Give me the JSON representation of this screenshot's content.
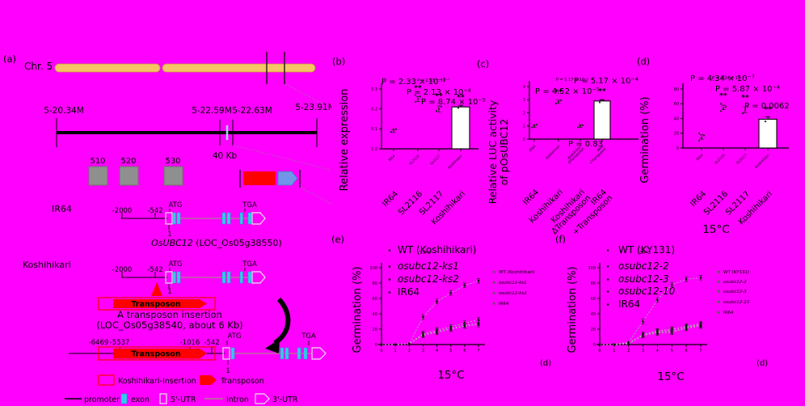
{
  "figure": {
    "bg_color": "#ff00ff",
    "panel_labels": {
      "a": "(a)",
      "b": "(b)",
      "c": "(c)",
      "d": "(d)",
      "e": "(e)",
      "f": "(f)"
    },
    "stray_labels": [
      "(d)",
      "(d)"
    ]
  },
  "panel_a": {
    "chromosome_label": "Chr. 5",
    "region_positions": [
      "5-20.34M",
      "5-22.59M",
      "5-22.63M",
      "5-23.91M"
    ],
    "scale_label": "40 Kb",
    "locus_boxes": [
      "510",
      "520",
      "530"
    ],
    "row_ir64": "IR64",
    "row_koshihikari": "Koshihikari",
    "gene_name_italic": "OsUBC12",
    "gene_name_rest": " (LOC_Os05g38550)",
    "upstream_marks_ir64": [
      "-2000",
      "-542"
    ],
    "upstream_marks_insertion": [
      "-6469",
      "-5537",
      "-1016",
      "-542"
    ],
    "start_codon": "ATG",
    "stop_codon": "TGA",
    "tss_label": "1",
    "transposon_box_label": "Transposon",
    "insertion_caption_line1": "A transposon insertion",
    "insertion_caption_line2": "(LOC_Os05g38540, about 6 Kb)",
    "legend": {
      "koshihikari_insertion": "Koshihikari-Insertion",
      "transposon": "Transposon",
      "promoter": "promoter",
      "exon": "exon",
      "utr5": "5'-UTR",
      "intron": "intron",
      "utr3": "3'-UTR"
    },
    "colors": {
      "chromosome": "#f6c464",
      "exon": "#35c8f0",
      "transposon": "#ff0000",
      "gene_arrow": "#7195e8",
      "locus_box": "#8f8f8f",
      "utr_outline": "#e6e6f0",
      "intron_line": "#97a06f"
    }
  },
  "chart_data": [
    {
      "id": "b",
      "type": "bar",
      "ylabel": "Relative expression",
      "categories": [
        [
          "IR64"
        ],
        [
          "SL2116"
        ],
        [
          "SL2117"
        ],
        [
          "Koshihikari"
        ]
      ],
      "values": [
        0.09,
        0.25,
        0.2,
        0.21
      ],
      "bar_outlined": [
        false,
        false,
        false,
        true
      ],
      "scatter": [
        [
          0.085,
          0.092,
          0.098
        ],
        [
          0.235,
          0.25,
          0.262,
          0.27
        ],
        [
          0.19,
          0.2,
          0.212
        ],
        [
          0.205,
          0.215
        ]
      ],
      "errors": [
        0.008,
        0.012,
        0.015,
        0.008
      ],
      "significance": [
        "",
        "**",
        "**",
        "**"
      ],
      "p_values": [
        "P = 2.33 × 10⁻⁷",
        "P = 2.13 × 10⁻⁴",
        "P = 8.74 × 10⁻⁵"
      ],
      "ylim": [
        0,
        0.3
      ],
      "yticks": [
        "0.0",
        "0.1",
        "0.2",
        "0.3"
      ]
    },
    {
      "id": "c",
      "type": "bar",
      "ylabel_line1": "Relative LUC activity",
      "ylabel_line2": "of pOsUBC12",
      "categories": [
        [
          "IR64"
        ],
        [
          "Koshihikari"
        ],
        [
          "Koshihikari",
          "ΔTransposon"
        ],
        [
          "IR64",
          "+Transposon"
        ]
      ],
      "values": [
        1.0,
        2.85,
        1.0,
        2.9
      ],
      "bar_outlined": [
        false,
        false,
        false,
        true
      ],
      "scatter": [
        [
          0.9,
          1.0,
          1.1
        ],
        [
          2.7,
          2.85,
          2.95
        ],
        [
          0.9,
          1.0,
          1.05
        ],
        [
          2.8,
          2.95
        ]
      ],
      "errors": [
        0.1,
        0.12,
        0.1,
        0.1
      ],
      "significance": [
        "",
        "**",
        "",
        "**"
      ],
      "p_values": [
        "P = 4.52 × 10⁻⁵",
        "P = 5.17 × 10⁻⁴",
        "P = 0.83"
      ],
      "ylim": [
        0,
        4
      ],
      "yticks": [
        "0",
        "1",
        "2",
        "3",
        "4"
      ]
    },
    {
      "id": "d",
      "type": "bar",
      "ylabel": "Germination (%)",
      "xlabel": "15°C",
      "categories": [
        [
          "IR64"
        ],
        [
          "SL2116"
        ],
        [
          "SL2117"
        ],
        [
          "Koshihikari"
        ]
      ],
      "values": [
        15,
        55,
        52,
        39
      ],
      "bar_outlined": [
        false,
        false,
        false,
        true
      ],
      "scatter": [
        [
          10,
          14,
          17,
          20
        ],
        [
          50,
          54,
          56,
          60
        ],
        [
          47,
          52,
          56
        ],
        [
          36,
          40
        ]
      ],
      "errors": [
        3,
        3,
        4,
        3
      ],
      "significance": [
        "",
        "**",
        "**",
        "**"
      ],
      "p_values": [
        "P = 4.34 × 10⁻⁷",
        "P = 5.87 × 10⁻⁴",
        "P = 0.0062"
      ],
      "ylim": [
        0,
        80
      ],
      "yticks": [
        "0",
        "20",
        "40",
        "60",
        "80"
      ]
    },
    {
      "id": "e",
      "type": "line",
      "ylabel": "Germination (%)",
      "xlabel": "15°C",
      "x": [
        0,
        1,
        2,
        3,
        4,
        5,
        6,
        7
      ],
      "xticks": [
        "0",
        "1",
        "2",
        "3",
        "4",
        "5",
        "6",
        "7"
      ],
      "series": [
        {
          "name": "WT (Koshihikari)",
          "values": [
            0,
            0,
            1,
            36,
            56,
            67,
            77,
            83
          ]
        },
        {
          "name": "osubc12-ks1",
          "values": [
            0,
            0,
            1,
            14,
            19,
            23,
            28,
            32
          ]
        },
        {
          "name": "osubc12-ks2",
          "values": [
            0,
            0,
            1,
            13,
            17,
            21,
            25,
            28
          ]
        },
        {
          "name": "IR64",
          "values": [
            0,
            0,
            1,
            12,
            16,
            20,
            24,
            26
          ]
        }
      ],
      "ylim": [
        0,
        100
      ],
      "yticks": [
        "0",
        "20",
        "40",
        "60",
        "80",
        "100"
      ],
      "legend_position": "right"
    },
    {
      "id": "f",
      "type": "line",
      "ylabel": "Germination (%)",
      "xlabel": "15°C",
      "x": [
        0,
        1,
        2,
        3,
        4,
        5,
        6,
        7
      ],
      "xticks": [
        "0",
        "1",
        "2",
        "3",
        "4",
        "5",
        "6",
        "7"
      ],
      "series": [
        {
          "name": "WT (KY131)",
          "values": [
            0,
            0,
            3,
            30,
            58,
            78,
            85,
            87
          ]
        },
        {
          "name": "osubc12-2",
          "values": [
            0,
            0,
            2,
            13,
            18,
            20,
            23,
            26
          ]
        },
        {
          "name": "osubc12-3",
          "values": [
            0,
            0,
            1,
            12,
            16,
            17,
            22,
            25
          ]
        },
        {
          "name": "osubc12-10",
          "values": [
            0,
            0,
            1,
            13,
            17,
            19,
            24,
            27
          ]
        },
        {
          "name": "IR64",
          "values": [
            0,
            0,
            1,
            12,
            15,
            16,
            21,
            24
          ]
        }
      ],
      "ylim": [
        0,
        100
      ],
      "yticks": [
        "0",
        "20",
        "40",
        "60",
        "80",
        "100"
      ],
      "legend_position": "right"
    }
  ]
}
